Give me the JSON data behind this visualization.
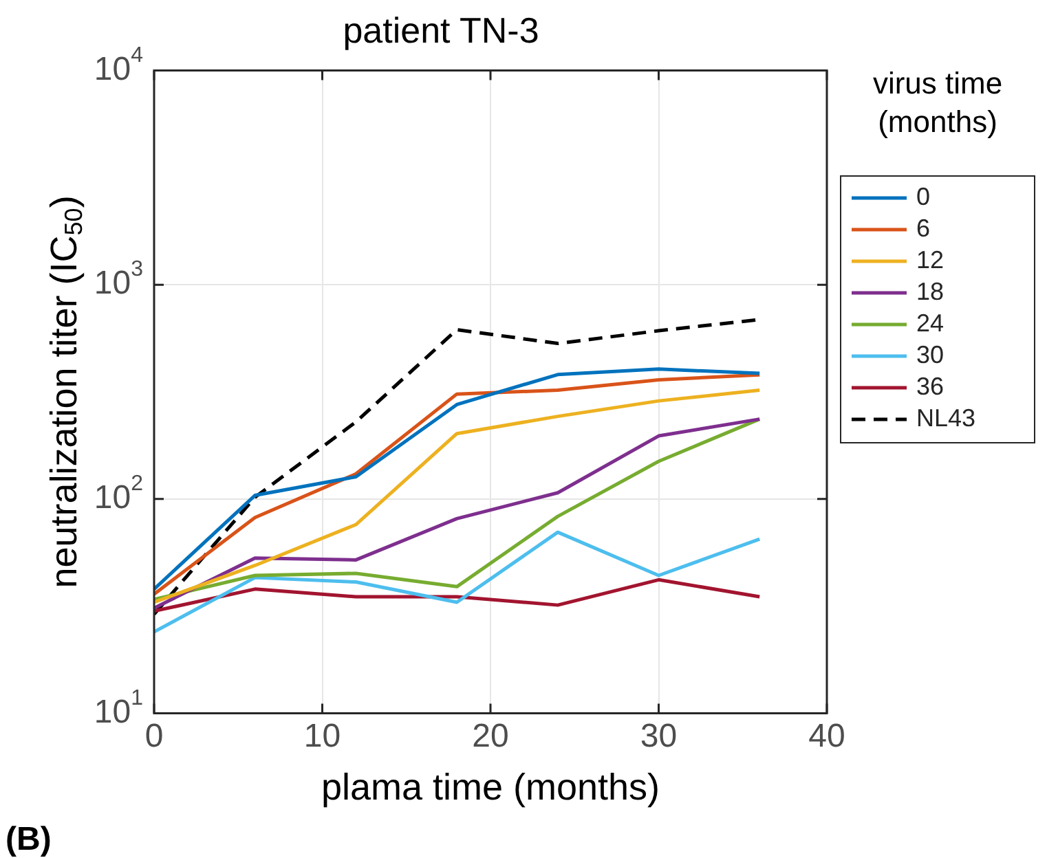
{
  "chart_data": {
    "type": "line",
    "title": "patient TN-3",
    "xlabel": "plama time (months)",
    "ylabel": "neutralization titer (IC$_{50}$)",
    "legend_title": "virus time (months)",
    "x": [
      0,
      6,
      12,
      18,
      24,
      30,
      36
    ],
    "series": [
      {
        "name": "0",
        "color": "#0072bd",
        "values": [
          38,
          104,
          127,
          276,
          381,
          404,
          386
        ]
      },
      {
        "name": "6",
        "color": "#d95319",
        "values": [
          36,
          82,
          131,
          309,
          322,
          360,
          380
        ]
      },
      {
        "name": "12",
        "color": "#edb120",
        "values": [
          33,
          49,
          76,
          202,
          243,
          287,
          322
        ]
      },
      {
        "name": "18",
        "color": "#7e2f8e",
        "values": [
          31,
          53,
          52,
          81,
          107,
          197,
          236
        ]
      },
      {
        "name": "24",
        "color": "#77ac30",
        "values": [
          34,
          44,
          45,
          39,
          83,
          150,
          236
        ]
      },
      {
        "name": "30",
        "color": "#4dbeee",
        "values": [
          24,
          43,
          41,
          33,
          70,
          44,
          65
        ]
      },
      {
        "name": "36",
        "color": "#a2142f",
        "values": [
          30,
          38,
          35,
          35,
          32,
          42,
          35
        ]
      },
      {
        "name": "NL43",
        "color": "#000000",
        "line_style": "dashed",
        "values": [
          29,
          102,
          229,
          617,
          532,
          610,
          688
        ]
      }
    ],
    "log": "y",
    "xlim": [
      0,
      40
    ],
    "xticks": [
      0,
      10,
      20,
      30,
      40
    ],
    "ylim": [
      10,
      10000
    ],
    "yticks": [
      {
        "value": 10,
        "label": "10$^{1}$"
      },
      {
        "value": 100,
        "label": "10$^{2}$"
      },
      {
        "value": 1000,
        "label": "10$^{3}$"
      },
      {
        "value": 10000,
        "label": "10$^{4}$"
      }
    ],
    "grid": true,
    "legend": "right",
    "marker": "none",
    "line_style": "solid",
    "annotations": [
      "(B)"
    ]
  }
}
